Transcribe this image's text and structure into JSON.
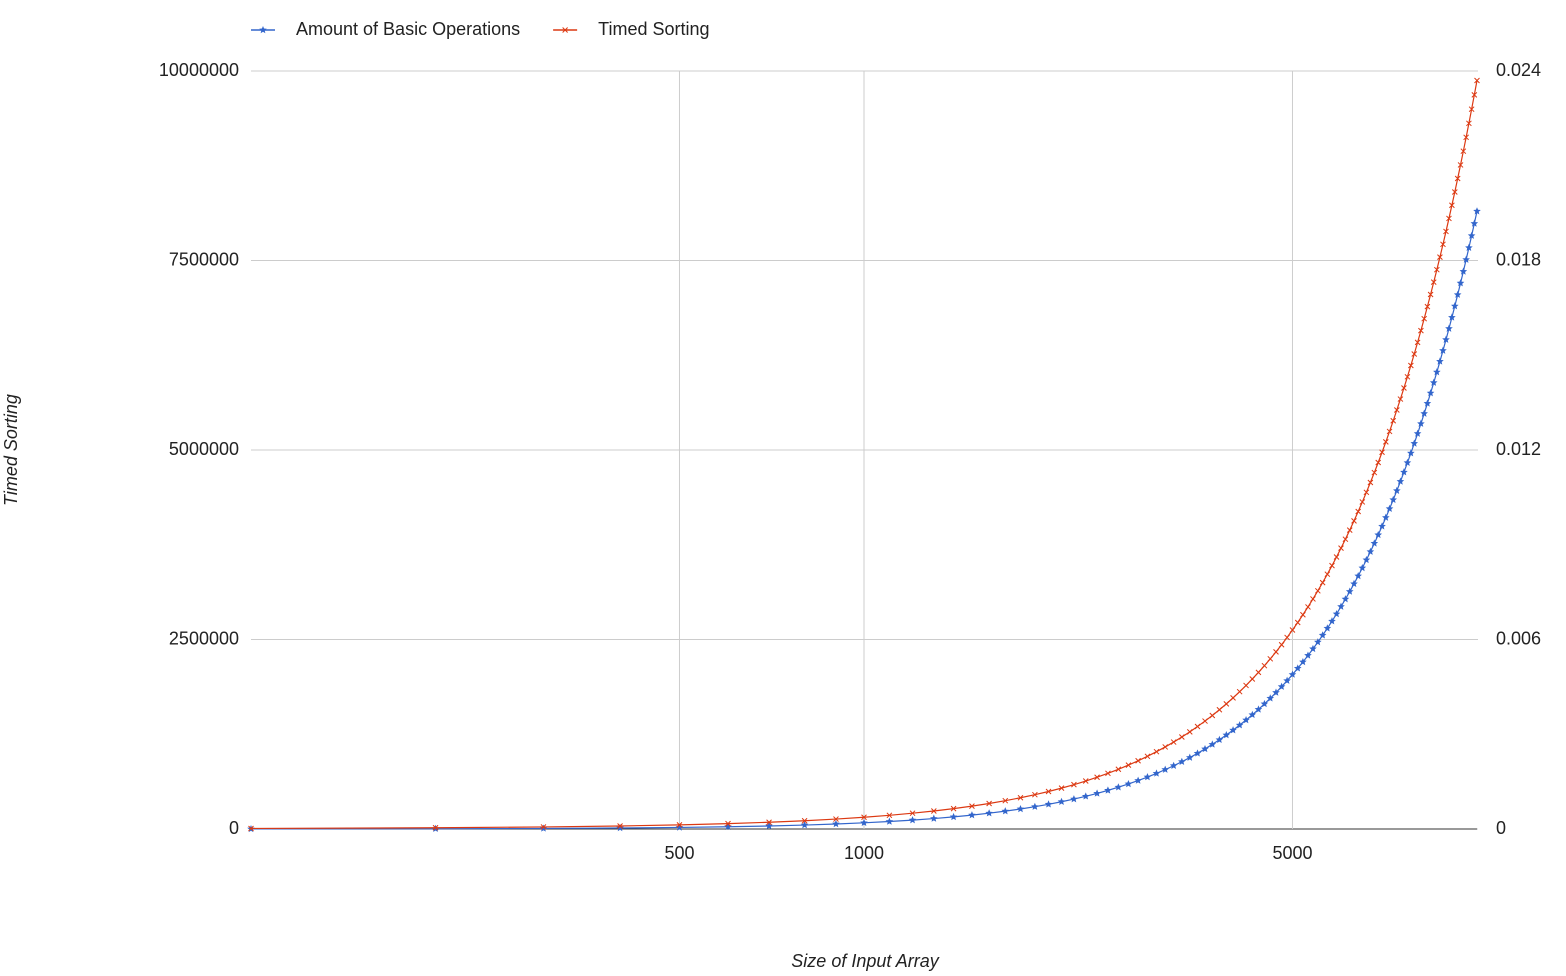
{
  "chart_data": {
    "type": "line",
    "x_label": "Size of Input Array",
    "y_label": "Timed Sorting",
    "x_log": true,
    "grid": true,
    "legend": "top-left",
    "xlim": [
      100,
      10000
    ],
    "xticks": [
      500,
      1000,
      5000
    ],
    "ylim": [
      0,
      10000000
    ],
    "yticks": [
      0,
      2500000,
      5000000,
      7500000,
      10000000
    ],
    "y2lim": [
      0,
      0.024
    ],
    "y2ticks": [
      0,
      0.006,
      0.012,
      0.018,
      0.024
    ],
    "x": [
      100,
      200,
      300,
      400,
      500,
      600,
      700,
      800,
      900,
      1000,
      1100,
      1200,
      1300,
      1400,
      1500,
      1600,
      1700,
      1800,
      1900,
      2000,
      2100,
      2200,
      2300,
      2400,
      2500,
      2600,
      2700,
      2800,
      2900,
      3000,
      3100,
      3200,
      3300,
      3400,
      3500,
      3600,
      3700,
      3800,
      3900,
      4000,
      4100,
      4200,
      4300,
      4400,
      4500,
      4600,
      4700,
      4800,
      4900,
      5000,
      5100,
      5200,
      5300,
      5400,
      5500,
      5600,
      5700,
      5800,
      5900,
      6000,
      6100,
      6200,
      6300,
      6400,
      6500,
      6600,
      6700,
      6800,
      6900,
      7000,
      7100,
      7200,
      7300,
      7400,
      7500,
      7600,
      7700,
      7800,
      7900,
      8000,
      8100,
      8200,
      8300,
      8400,
      8500,
      8600,
      8700,
      8800,
      8900,
      9000,
      9100,
      9200,
      9300,
      9400,
      9500,
      9600,
      9700,
      9800,
      9900,
      10000
    ],
    "series": [
      {
        "name": "Amount of Basic Operations",
        "color": "#3366cc",
        "marker": "star",
        "axis": "y",
        "values": [
          815,
          3260,
          7335,
          13040,
          20375,
          29340,
          39935,
          52160,
          66015,
          81500,
          98615,
          117360,
          137735,
          159740,
          183375,
          208640,
          235535,
          264060,
          294215,
          326000,
          359415,
          394460,
          431135,
          469440,
          509375,
          550940,
          594135,
          638960,
          685415,
          733500,
          783215,
          834560,
          887535,
          942140,
          998375,
          1056240,
          1115735,
          1176860,
          1239615,
          1304000,
          1370015,
          1437660,
          1506935,
          1577840,
          1650375,
          1724540,
          1800335,
          1877760,
          1956815,
          2037500,
          2119815,
          2203760,
          2289335,
          2376540,
          2465375,
          2555840,
          2647935,
          2741660,
          2837015,
          2934000,
          3032615,
          3132860,
          3234735,
          3338240,
          3443375,
          3550140,
          3658535,
          3768560,
          3880215,
          3993500,
          4108415,
          4224960,
          4343135,
          4462940,
          4584375,
          4707440,
          4832135,
          4958460,
          5086415,
          5216000,
          5347215,
          5480060,
          5614535,
          5750640,
          5888375,
          6027740,
          6168735,
          6311360,
          6455615,
          6601500,
          6749015,
          6898160,
          7048935,
          7201340,
          7355375,
          7511040,
          7668335,
          7827260,
          7987815,
          8150000
        ]
      },
      {
        "name": "Timed Sorting",
        "color": "#dc3912",
        "marker": "x",
        "axis": "y2",
        "values": [
          1.7e-05,
          3.9e-05,
          6.5e-05,
          9.6e-05,
          0.000131,
          0.00017,
          0.000214,
          0.000262,
          0.000315,
          0.000372,
          0.000434,
          0.0005,
          0.00057,
          0.000645,
          0.000725,
          0.000808,
          0.000897,
          0.000989,
          0.001086,
          0.001188,
          0.001294,
          0.001404,
          0.001519,
          0.001639,
          0.001763,
          0.001891,
          0.002023,
          0.00216,
          0.002302,
          0.002448,
          0.002598,
          0.002753,
          0.002913,
          0.003076,
          0.003245,
          0.003417,
          0.003594,
          0.003776,
          0.003962,
          0.004152,
          0.004347,
          0.004546,
          0.00475,
          0.004958,
          0.005171,
          0.005388,
          0.005609,
          0.005835,
          0.006065,
          0.0063,
          0.006539,
          0.006783,
          0.007031,
          0.007284,
          0.007541,
          0.007802,
          0.008068,
          0.008338,
          0.008613,
          0.008892,
          0.009176,
          0.009464,
          0.009756,
          0.010053,
          0.010355,
          0.01066,
          0.010971,
          0.011285,
          0.011604,
          0.011928,
          0.012256,
          0.012588,
          0.012925,
          0.013267,
          0.013613,
          0.013963,
          0.014317,
          0.014676,
          0.01504,
          0.015408,
          0.01578,
          0.016157,
          0.016539,
          0.016924,
          0.017315,
          0.017709,
          0.018108,
          0.018512,
          0.01892,
          0.019332,
          0.019749,
          0.02017,
          0.020596,
          0.021026,
          0.021461,
          0.0219,
          0.022343,
          0.022791,
          0.023243,
          0.0237
        ]
      }
    ]
  }
}
